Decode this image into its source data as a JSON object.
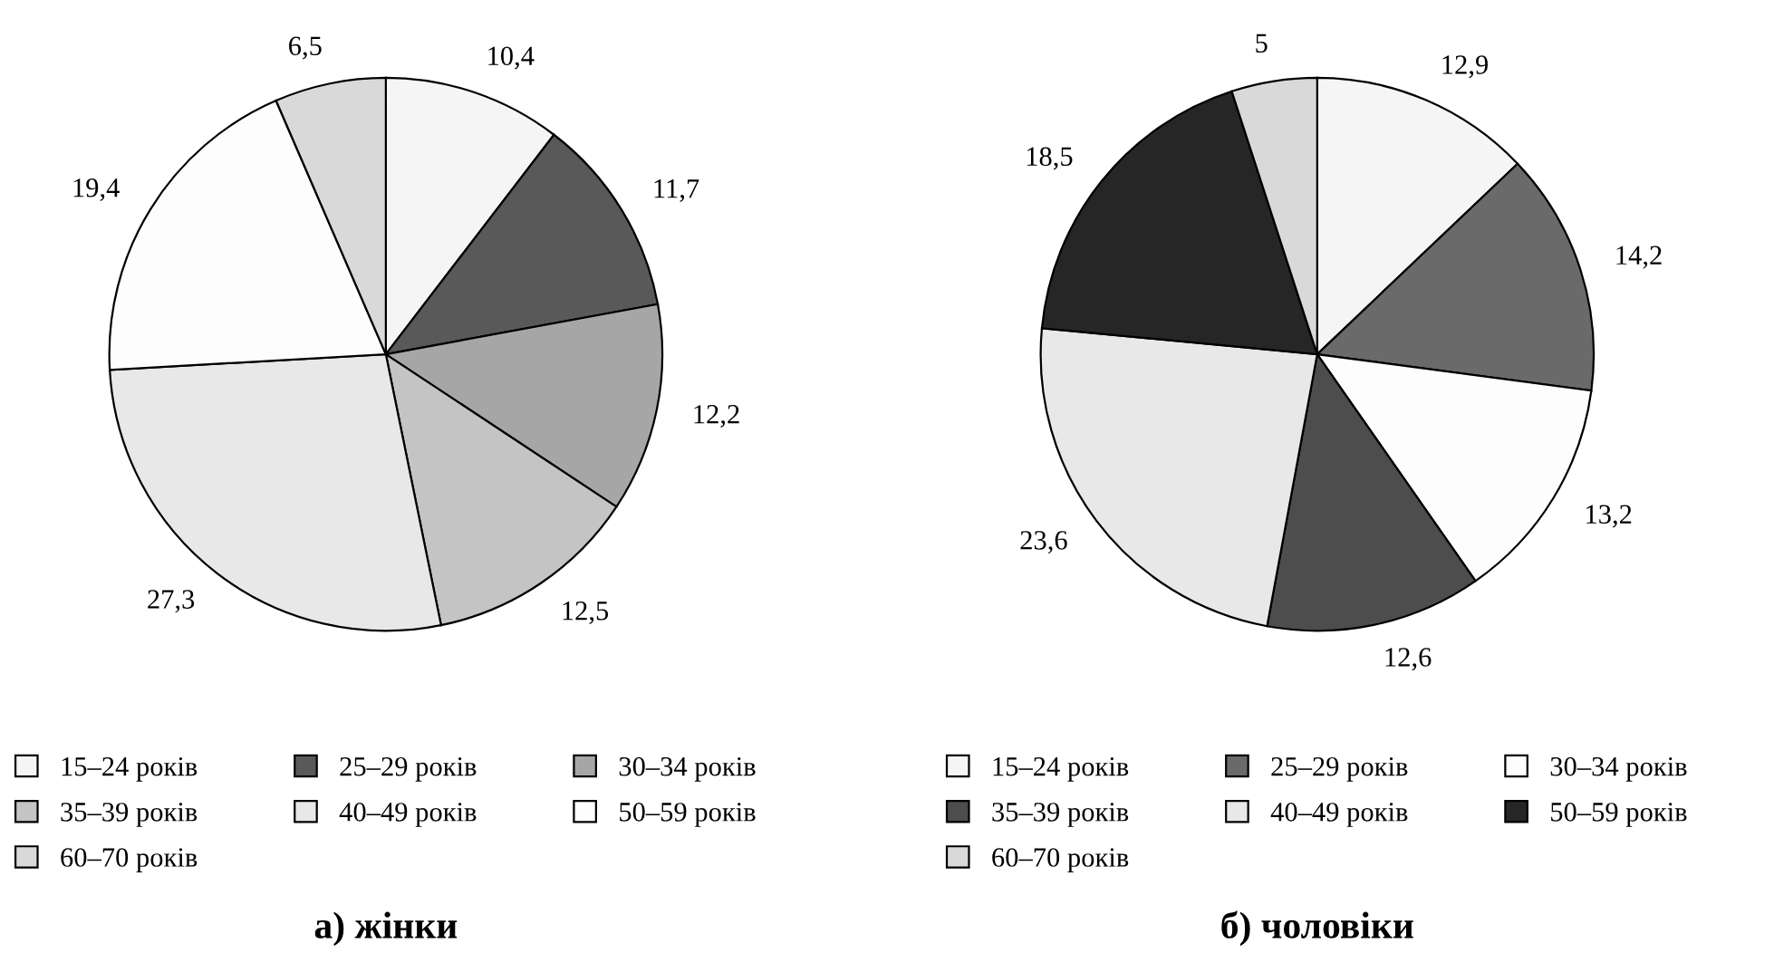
{
  "chart_data": [
    {
      "type": "pie",
      "title": "а) жінки",
      "legend": "bottom",
      "categories": [
        "15–24 років",
        "25–29 років",
        "30–34 років",
        "35–39 років",
        "40–49 років",
        "50–59 років",
        "60–70 років"
      ],
      "values": [
        10.4,
        11.7,
        12.2,
        12.5,
        27.3,
        19.4,
        6.5
      ],
      "value_labels": [
        "10,4",
        "11,7",
        "12,2",
        "12,5",
        "27,3",
        "19,4",
        "6,5"
      ],
      "colors": [
        "#f5f5f5",
        "#595959",
        "#a6a6a6",
        "#c4c4c4",
        "#e8e8e8",
        "#fdfdfd",
        "#d9d9d9"
      ]
    },
    {
      "type": "pie",
      "title": "б) чоловіки",
      "legend": "bottom",
      "categories": [
        "15–24 років",
        "25–29 років",
        "30–34 років",
        "35–39 років",
        "40–49 років",
        "50–59 років",
        "60–70 років"
      ],
      "values": [
        12.9,
        14.2,
        13.2,
        12.6,
        23.6,
        18.5,
        5
      ],
      "value_labels": [
        "12,9",
        "14,2",
        "13,2",
        "12,6",
        "23,6",
        "18,5",
        "5"
      ],
      "colors": [
        "#f5f5f5",
        "#6a6a6a",
        "#fdfdfd",
        "#4d4d4d",
        "#e8e8e8",
        "#262626",
        "#d9d9d9"
      ]
    }
  ]
}
